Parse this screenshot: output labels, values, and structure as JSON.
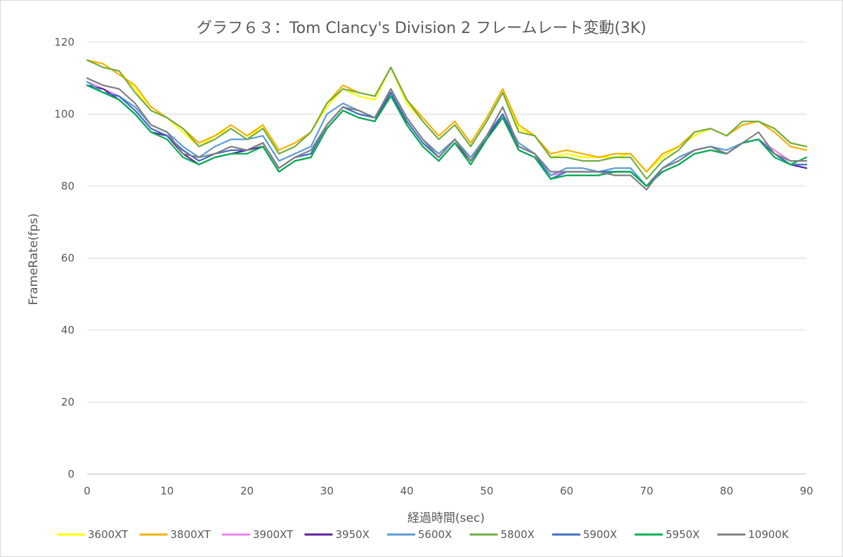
{
  "chart_data": {
    "type": "line",
    "title": "グラフ６３：Tom Clancy's Division 2 フレームレート変動(3K)",
    "xlabel": "経過時間(sec)",
    "ylabel": "FrameRate(fps)",
    "xlim": [
      0,
      90
    ],
    "ylim": [
      0,
      120
    ],
    "x_ticks": [
      "0",
      "10",
      "20",
      "30",
      "40",
      "50",
      "60",
      "70",
      "80",
      "90"
    ],
    "y_ticks": [
      "0",
      "20",
      "40",
      "60",
      "80",
      "100",
      "120"
    ],
    "grid": "horizontal",
    "legend": "bottom",
    "x": [
      0,
      2,
      4,
      6,
      8,
      10,
      12,
      14,
      16,
      18,
      20,
      22,
      24,
      26,
      28,
      30,
      32,
      34,
      36,
      38,
      40,
      42,
      44,
      46,
      48,
      50,
      52,
      54,
      56,
      58,
      60,
      62,
      64,
      66,
      68,
      70,
      72,
      74,
      76,
      78,
      80,
      82,
      84,
      86,
      88,
      90
    ],
    "series": [
      {
        "name": "3600XT",
        "color": "#ffff00",
        "values": [
          115,
          113,
          112,
          107,
          101,
          99,
          95,
          91,
          94,
          96,
          93,
          97,
          89,
          91,
          95,
          102,
          107,
          105,
          104,
          113,
          103,
          98,
          93,
          97,
          91,
          98,
          106,
          96,
          94,
          88,
          89,
          88,
          88,
          88,
          89,
          84,
          88,
          91,
          94,
          96,
          94,
          97,
          98,
          96,
          92,
          91
        ]
      },
      {
        "name": "3800XT",
        "color": "#f5b000",
        "values": [
          115,
          114,
          111,
          108,
          102,
          99,
          96,
          92,
          94,
          97,
          94,
          97,
          90,
          92,
          95,
          103,
          108,
          106,
          105,
          113,
          104,
          99,
          94,
          98,
          92,
          99,
          107,
          97,
          94,
          89,
          90,
          89,
          88,
          89,
          89,
          84,
          89,
          91,
          95,
          96,
          94,
          97,
          98,
          95,
          91,
          90
        ]
      },
      {
        "name": "3900XT",
        "color": "#ee82ee",
        "values": [
          109,
          107,
          105,
          101,
          96,
          94,
          90,
          87,
          89,
          90,
          90,
          92,
          85,
          88,
          89,
          97,
          102,
          100,
          99,
          106,
          98,
          92,
          88,
          93,
          87,
          94,
          100,
          91,
          89,
          83,
          84,
          84,
          84,
          84,
          84,
          80,
          85,
          87,
          90,
          91,
          89,
          92,
          93,
          90,
          87,
          87
        ]
      },
      {
        "name": "3950X",
        "color": "#5b1fa0",
        "values": [
          108,
          107,
          104,
          100,
          95,
          94,
          89,
          86,
          88,
          89,
          90,
          91,
          84,
          87,
          88,
          96,
          101,
          99,
          98,
          106,
          97,
          91,
          87,
          92,
          87,
          93,
          100,
          90,
          88,
          82,
          83,
          83,
          83,
          84,
          84,
          80,
          84,
          86,
          89,
          90,
          89,
          92,
          93,
          89,
          86,
          85
        ]
      },
      {
        "name": "5600X",
        "color": "#5b9bd5",
        "values": [
          109,
          106,
          105,
          102,
          97,
          95,
          91,
          88,
          91,
          93,
          93,
          94,
          87,
          89,
          91,
          100,
          103,
          101,
          99,
          107,
          99,
          93,
          89,
          93,
          88,
          94,
          100,
          92,
          89,
          83,
          85,
          85,
          84,
          85,
          85,
          80,
          85,
          88,
          90,
          91,
          90,
          92,
          93,
          89,
          86,
          86
        ]
      },
      {
        "name": "5800X",
        "color": "#70ad47",
        "values": [
          115,
          113,
          112,
          106,
          101,
          99,
          96,
          91,
          93,
          96,
          93,
          96,
          89,
          91,
          95,
          103,
          107,
          106,
          105,
          113,
          104,
          98,
          93,
          97,
          91,
          98,
          106,
          95,
          94,
          88,
          88,
          87,
          87,
          88,
          88,
          82,
          87,
          90,
          95,
          96,
          94,
          98,
          98,
          96,
          92,
          91
        ]
      },
      {
        "name": "5900X",
        "color": "#3f6fc2",
        "values": [
          108,
          106,
          105,
          101,
          96,
          94,
          90,
          87,
          89,
          90,
          90,
          92,
          85,
          88,
          89,
          97,
          102,
          100,
          99,
          106,
          98,
          92,
          88,
          93,
          87,
          94,
          100,
          91,
          89,
          82,
          84,
          84,
          84,
          84,
          84,
          80,
          85,
          87,
          90,
          91,
          89,
          92,
          93,
          89,
          86,
          86
        ]
      },
      {
        "name": "5950X",
        "color": "#00b050",
        "values": [
          108,
          106,
          104,
          100,
          95,
          93,
          88,
          86,
          88,
          89,
          89,
          91,
          84,
          87,
          88,
          96,
          101,
          99,
          98,
          105,
          97,
          91,
          87,
          92,
          86,
          93,
          99,
          90,
          88,
          82,
          83,
          83,
          83,
          84,
          84,
          80,
          84,
          86,
          89,
          90,
          89,
          92,
          93,
          88,
          86,
          88
        ]
      },
      {
        "name": "10900K",
        "color": "#808080",
        "values": [
          110,
          108,
          107,
          103,
          97,
          95,
          89,
          88,
          89,
          91,
          90,
          92,
          85,
          88,
          90,
          97,
          102,
          101,
          99,
          107,
          99,
          93,
          88,
          93,
          87,
          94,
          102,
          91,
          89,
          84,
          84,
          84,
          84,
          83,
          83,
          79,
          85,
          87,
          90,
          91,
          89,
          92,
          95,
          89,
          87,
          87
        ]
      }
    ]
  }
}
